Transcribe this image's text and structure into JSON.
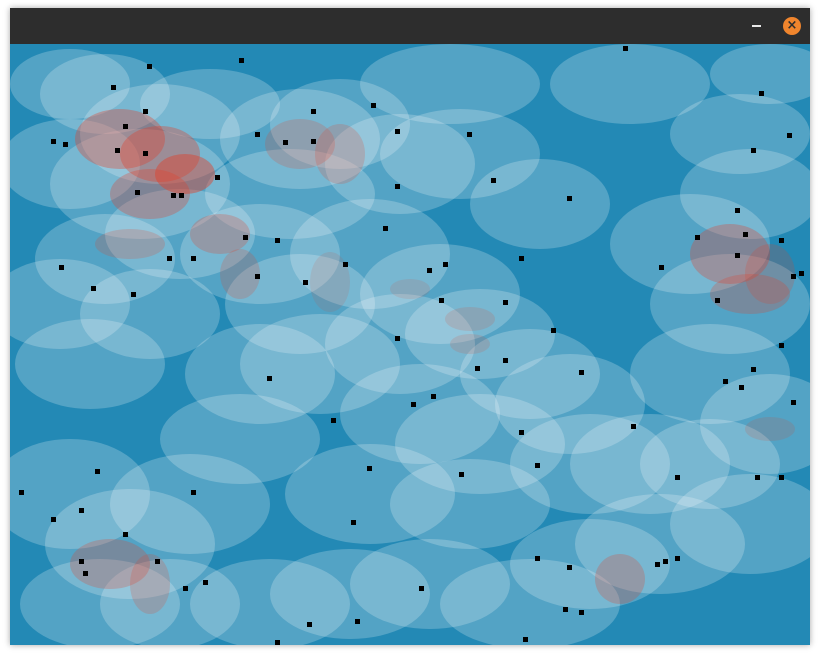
{
  "window": {
    "title": "",
    "minimize_symbol": "–",
    "close_symbol": "×"
  },
  "colors": {
    "titlebar": "#2d2d2d",
    "background": "#2389b5",
    "close_button": "#f0852d",
    "ellipse_fill": "#ffffff",
    "overlap_fill": "#e0402a",
    "point": "#000000"
  },
  "icons": [
    "minimize-icon",
    "close-icon"
  ]
}
